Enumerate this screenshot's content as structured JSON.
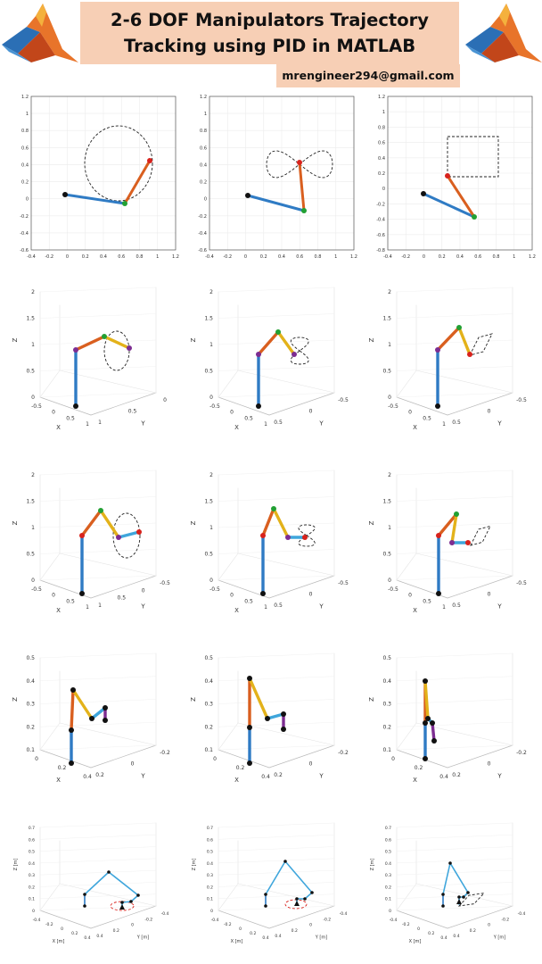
{
  "header": {
    "title_line1": "2-6 DOF Manipulators Trajectory",
    "title_line2": "Tracking using PID in MATLAB",
    "email": "mrengineer294@gmail.com",
    "logo_icon": "matlab-membrane-logo-icon"
  },
  "colors": {
    "link_blue": "#2f7bc4",
    "link_orange": "#d95f1f",
    "link_yellow": "#e3b21a",
    "link_purple": "#7d2d91",
    "link_light_blue": "#3fa6dc",
    "joint_green": "#22a033",
    "joint_red": "#d8221c",
    "joint_black": "#111111",
    "title_bg": "#f7cfb5"
  },
  "rows": [
    {
      "name": "2d-planar-row",
      "panels": [
        {
          "name": "planar-2dof-circle-plot",
          "type": "2d",
          "xticks": [
            "-0.4",
            "-0.2",
            "0",
            "0.2",
            "0.4",
            "0.6",
            "0.8",
            "1",
            "1.2"
          ],
          "yticks": [
            "1.2",
            "1",
            "0.8",
            "0.6",
            "0.4",
            "0.2",
            "0",
            "-0.2",
            "-0.4",
            "-0.6"
          ]
        },
        {
          "name": "planar-2dof-figure8-plot",
          "type": "2d",
          "xticks": [
            "-0.4",
            "-0.2",
            "0",
            "0.2",
            "0.4",
            "0.6",
            "0.8",
            "1",
            "1.2"
          ],
          "yticks": [
            "1.2",
            "1",
            "0.8",
            "0.6",
            "0.4",
            "0.2",
            "0",
            "-0.2",
            "-0.4",
            "-0.6"
          ]
        },
        {
          "name": "planar-2dof-square-plot",
          "type": "2d",
          "xticks": [
            "-0.4",
            "-0.2",
            "0",
            "0.2",
            "0.4",
            "0.6",
            "0.8",
            "1",
            "1.2"
          ],
          "yticks": [
            "1.2",
            "1",
            "0.8",
            "0.6",
            "0.4",
            "0.2",
            "0",
            "-0.2",
            "-0.4",
            "-0.6",
            "-0.8"
          ]
        }
      ]
    },
    {
      "name": "3d-3dof-row",
      "panels": [
        {
          "name": "spatial-3dof-circle-plot",
          "type": "3d",
          "zlabel": "Z",
          "xlabel": "X",
          "ylabel": "Y",
          "zticks": [
            "2",
            "1.5",
            "1",
            "0.5",
            "0"
          ],
          "xticks": [
            "-0.5",
            "0",
            "0.5",
            "1"
          ],
          "yticks": [
            "1",
            "0.5",
            "0"
          ]
        },
        {
          "name": "spatial-3dof-figure8-plot",
          "type": "3d",
          "zlabel": "Z",
          "xlabel": "X",
          "ylabel": "Y",
          "zticks": [
            "2",
            "1.5",
            "1",
            "0.5",
            "0"
          ],
          "xticks": [
            "-0.5",
            "0",
            "0.5",
            "1"
          ],
          "yticks": [
            "0.5",
            "0",
            "-0.5"
          ]
        },
        {
          "name": "spatial-3dof-square-plot",
          "type": "3d",
          "zlabel": "Z",
          "xlabel": "X",
          "ylabel": "Y",
          "zticks": [
            "2",
            "1.5",
            "1",
            "0.5",
            "0"
          ],
          "xticks": [
            "-0.5",
            "0",
            "0.5",
            "1"
          ],
          "yticks": [
            "0.5",
            "0",
            "-0.5"
          ]
        }
      ]
    },
    {
      "name": "3d-4dof-row",
      "panels": [
        {
          "name": "spatial-4dof-circle-plot",
          "type": "3d",
          "zlabel": "Z",
          "xlabel": "X",
          "ylabel": "Y",
          "zticks": [
            "2",
            "1.5",
            "1",
            "0.5",
            "0"
          ],
          "xticks": [
            "-0.5",
            "0",
            "0.5",
            "1"
          ],
          "yticks": [
            "1",
            "0.5",
            "0",
            "-0.5"
          ]
        },
        {
          "name": "spatial-4dof-figure8-plot",
          "type": "3d",
          "zlabel": "Z",
          "xlabel": "X",
          "ylabel": "Y",
          "zticks": [
            "2",
            "1.5",
            "1",
            "0.5",
            "0"
          ],
          "xticks": [
            "-0.5",
            "0",
            "0.5",
            "1"
          ],
          "yticks": [
            "0.5",
            "0",
            "-0.5"
          ]
        },
        {
          "name": "spatial-4dof-square-plot",
          "type": "3d",
          "zlabel": "Z",
          "xlabel": "X",
          "ylabel": "Y",
          "zticks": [
            "2",
            "1.5",
            "1",
            "0.5",
            "0"
          ],
          "xticks": [
            "-0.5",
            "0",
            "0.5",
            "1"
          ],
          "yticks": [
            "0.5",
            "0",
            "-0.5"
          ]
        }
      ]
    },
    {
      "name": "3d-5dof-row",
      "panels": [
        {
          "name": "spatial-5dof-pose1-plot",
          "type": "3d",
          "zlabel": "Z",
          "xlabel": "X",
          "ylabel": "Y",
          "zticks": [
            "0.5",
            "0.4",
            "0.3",
            "0.2",
            "0.1"
          ],
          "xticks": [
            "0",
            "0.2",
            "0.4"
          ],
          "yticks": [
            "0.2",
            "0",
            "-0.2"
          ]
        },
        {
          "name": "spatial-5dof-pose2-plot",
          "type": "3d",
          "zlabel": "Z",
          "xlabel": "X",
          "ylabel": "Y",
          "zticks": [
            "0.5",
            "0.4",
            "0.3",
            "0.2",
            "0.1"
          ],
          "xticks": [
            "0",
            "0.2",
            "0.4"
          ],
          "yticks": [
            "0.2",
            "0",
            "-0.2"
          ]
        },
        {
          "name": "spatial-5dof-pose3-plot",
          "type": "3d",
          "zlabel": "Z",
          "xlabel": "X",
          "ylabel": "Y",
          "zticks": [
            "0.5",
            "0.4",
            "0.3",
            "0.2",
            "0.1"
          ],
          "xticks": [
            "0",
            "0.2",
            "0.4"
          ],
          "yticks": [
            "0.2",
            "0",
            "-0.2"
          ]
        }
      ]
    },
    {
      "name": "3d-6dof-row",
      "panels": [
        {
          "name": "spatial-6dof-pose1-plot",
          "type": "3d",
          "zlabel": "Z [m]",
          "xlabel": "X [m]",
          "ylabel": "Y [m]",
          "zticks": [
            "0.7",
            "0.6",
            "0.5",
            "0.4",
            "0.3",
            "0.2",
            "0.1",
            "0"
          ],
          "xticks": [
            "-0.4",
            "-0.2",
            "0",
            "0.2",
            "0.4"
          ],
          "yticks": [
            "0.4",
            "0.2",
            "0",
            "-0.2",
            "-0.4"
          ]
        },
        {
          "name": "spatial-6dof-pose2-plot",
          "type": "3d",
          "zlabel": "Z [m]",
          "xlabel": "X [m]",
          "ylabel": "Y [m]",
          "zticks": [
            "0.7",
            "0.6",
            "0.5",
            "0.4",
            "0.3",
            "0.2",
            "0.1",
            "0"
          ],
          "xticks": [
            "-0.4",
            "-0.2",
            "0",
            "0.2",
            "0.4"
          ],
          "yticks": [
            "0.4",
            "0.2",
            "0",
            "-0.2",
            "-0.4"
          ]
        },
        {
          "name": "spatial-6dof-pose3-plot",
          "type": "3d",
          "zlabel": "Z [m]",
          "xlabel": "X [m]",
          "ylabel": "Y [m]",
          "zticks": [
            "0.7",
            "0.6",
            "0.5",
            "0.4",
            "0.3",
            "0.2",
            "0.1",
            "0"
          ],
          "xticks": [
            "-0.4",
            "-0.2",
            "0",
            "0.2",
            "0.4"
          ],
          "yticks": [
            "0.4",
            "0.2",
            "0",
            "-0.2",
            "-0.4"
          ]
        }
      ]
    }
  ]
}
